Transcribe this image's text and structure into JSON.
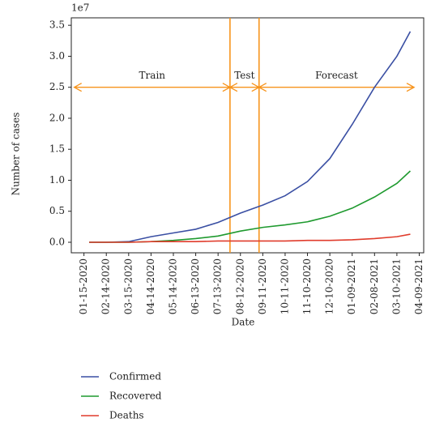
{
  "chart_data": {
    "type": "line",
    "y_label": "Number of cases",
    "x_label": "Date",
    "y_offset_label": "1e7",
    "x": [
      "2020-01-22",
      "2020-02-14",
      "2020-03-15",
      "2020-04-14",
      "2020-05-14",
      "2020-06-13",
      "2020-07-13",
      "2020-08-12",
      "2020-09-11",
      "2020-10-11",
      "2020-11-10",
      "2020-12-10",
      "2021-01-09",
      "2021-02-08",
      "2021-03-10",
      "2021-03-28"
    ],
    "series": [
      {
        "name": "Confirmed",
        "color": "#3a4fa3",
        "values": [
          0,
          0,
          0.01,
          0.09,
          0.15,
          0.21,
          0.32,
          0.47,
          0.6,
          0.75,
          0.98,
          1.35,
          1.9,
          2.5,
          3.0,
          3.4
        ]
      },
      {
        "name": "Recovered",
        "color": "#1f9a2f",
        "values": [
          0,
          0,
          0,
          0.01,
          0.03,
          0.06,
          0.1,
          0.18,
          0.24,
          0.28,
          0.33,
          0.42,
          0.55,
          0.73,
          0.95,
          1.15
        ]
      },
      {
        "name": "Deaths",
        "color": "#e03c2c",
        "values": [
          0,
          0,
          0,
          0.01,
          0.01,
          0.01,
          0.02,
          0.02,
          0.02,
          0.02,
          0.03,
          0.03,
          0.04,
          0.06,
          0.09,
          0.13
        ]
      }
    ],
    "xlim": [
      "2019-12-29",
      "2021-04-15"
    ],
    "ylim": [
      -0.17,
      3.62
    ],
    "yticks": [
      {
        "value": 0,
        "label": "0.0"
      },
      {
        "value": 0.5,
        "label": "0.5"
      },
      {
        "value": 1,
        "label": "1.0"
      },
      {
        "value": 1.5,
        "label": "1.5"
      },
      {
        "value": 2,
        "label": "2.0"
      },
      {
        "value": 2.5,
        "label": "2.5"
      },
      {
        "value": 3,
        "label": "3.0"
      },
      {
        "value": 3.5,
        "label": "3.5"
      }
    ],
    "xticks": [
      {
        "value": "2020-01-15",
        "label": "01-15-2020"
      },
      {
        "value": "2020-02-14",
        "label": "02-14-2020"
      },
      {
        "value": "2020-03-15",
        "label": "03-15-2020"
      },
      {
        "value": "2020-04-14",
        "label": "04-14-2020"
      },
      {
        "value": "2020-05-14",
        "label": "05-14-2020"
      },
      {
        "value": "2020-06-13",
        "label": "06-13-2020"
      },
      {
        "value": "2020-07-13",
        "label": "07-13-2020"
      },
      {
        "value": "2020-08-12",
        "label": "08-12-2020"
      },
      {
        "value": "2020-09-11",
        "label": "09-11-2020"
      },
      {
        "value": "2020-10-11",
        "label": "10-11-2020"
      },
      {
        "value": "2020-11-10",
        "label": "11-10-2020"
      },
      {
        "value": "2020-12-10",
        "label": "12-10-2020"
      },
      {
        "value": "2021-01-09",
        "label": "01-09-2021"
      },
      {
        "value": "2021-02-08",
        "label": "02-08-2021"
      },
      {
        "value": "2021-03-10",
        "label": "03-10-2021"
      },
      {
        "value": "2021-04-09",
        "label": "04-09-2021"
      }
    ],
    "splits": [
      "2020-07-29",
      "2020-09-06"
    ],
    "annotation_color": "#f7941d",
    "annotation_y": 2.5,
    "annotations": [
      {
        "label": "Train",
        "from": "2020-01-02",
        "to": "2020-07-29"
      },
      {
        "label": "Test",
        "from": "2020-07-29",
        "to": "2020-09-06"
      },
      {
        "label": "Forecast",
        "from": "2020-09-06",
        "to": "2021-04-02"
      }
    ]
  }
}
